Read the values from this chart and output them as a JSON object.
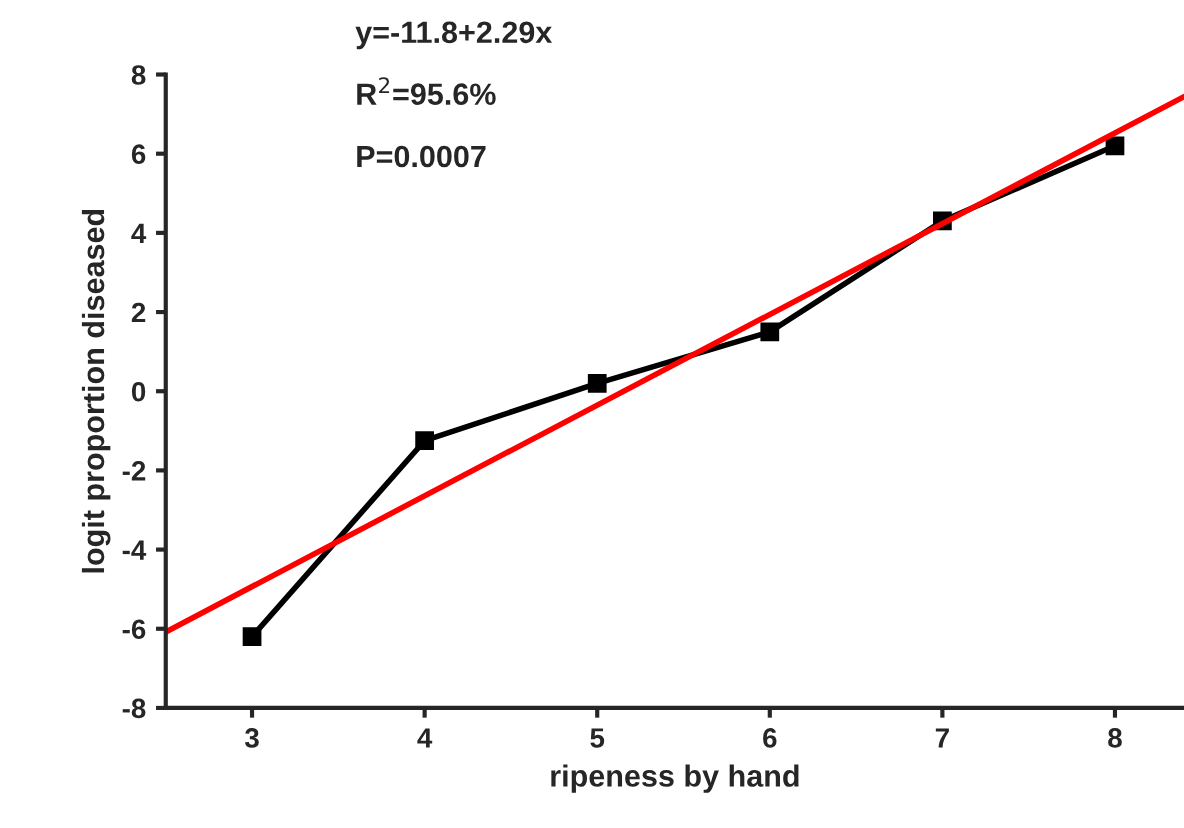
{
  "chart_data": {
    "type": "line",
    "xlabel": "ripeness by hand",
    "ylabel": "logit proportion diseased",
    "annotations": [
      "y=-11.8+2.29x",
      "R$^{2}$=95.6%",
      "P=0.0007"
    ],
    "series": [
      {
        "color": "#000000",
        "marker": "square",
        "x": [
          3,
          4,
          5,
          6,
          7,
          8
        ],
        "values": [
          -6.2,
          -1.25,
          0.2,
          1.5,
          4.3,
          6.2
        ]
      },
      {
        "color": "#ff0000",
        "marker": "none",
        "x": [
          2.5,
          8.4
        ],
        "values": [
          -6.08,
          7.44
        ]
      }
    ],
    "xlim": [
      2.5,
      8.4
    ],
    "xticks": [
      3,
      4,
      5,
      6,
      7,
      8
    ],
    "ylim": [
      -8,
      8
    ],
    "yticks": [
      -8,
      -6,
      -4,
      -2,
      0,
      2,
      4,
      6,
      8
    ],
    "grid": false,
    "legend": false
  }
}
